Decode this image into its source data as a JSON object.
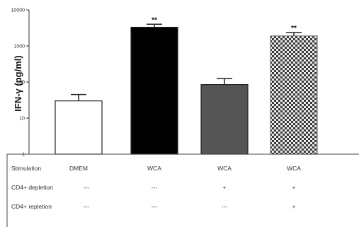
{
  "chart_data": {
    "type": "bar",
    "ylabel": "IFN-γ (pg/ml)",
    "yscale": "log",
    "ylim": [
      1,
      10000
    ],
    "yticks": [
      "1",
      "10",
      "100",
      "1000",
      "10000"
    ],
    "categories": [
      "DMEM",
      "WCA",
      "WCA",
      "WCA"
    ],
    "values": [
      30,
      3300,
      85,
      1900
    ],
    "errors": [
      15,
      700,
      40,
      450
    ],
    "significance": [
      "",
      "**",
      "",
      "**"
    ],
    "bar_fills": [
      "white",
      "black",
      "dark-gray",
      "checkered"
    ],
    "colors": {
      "white": "#ffffff",
      "black": "#000000",
      "dark-gray": "#555555",
      "checker-dark": "#3a3a3a",
      "checker-light": "#ececec"
    }
  },
  "table": {
    "rows": [
      {
        "label": "Stimulation",
        "values": [
          "DMEM",
          "WCA",
          "WCA",
          "WCA"
        ]
      },
      {
        "label": "CD4+ depletion",
        "values": [
          "---",
          "---",
          "+",
          "+"
        ]
      },
      {
        "label": "CD4+ repletion",
        "values": [
          "---",
          "---",
          "---",
          "+"
        ]
      }
    ]
  }
}
